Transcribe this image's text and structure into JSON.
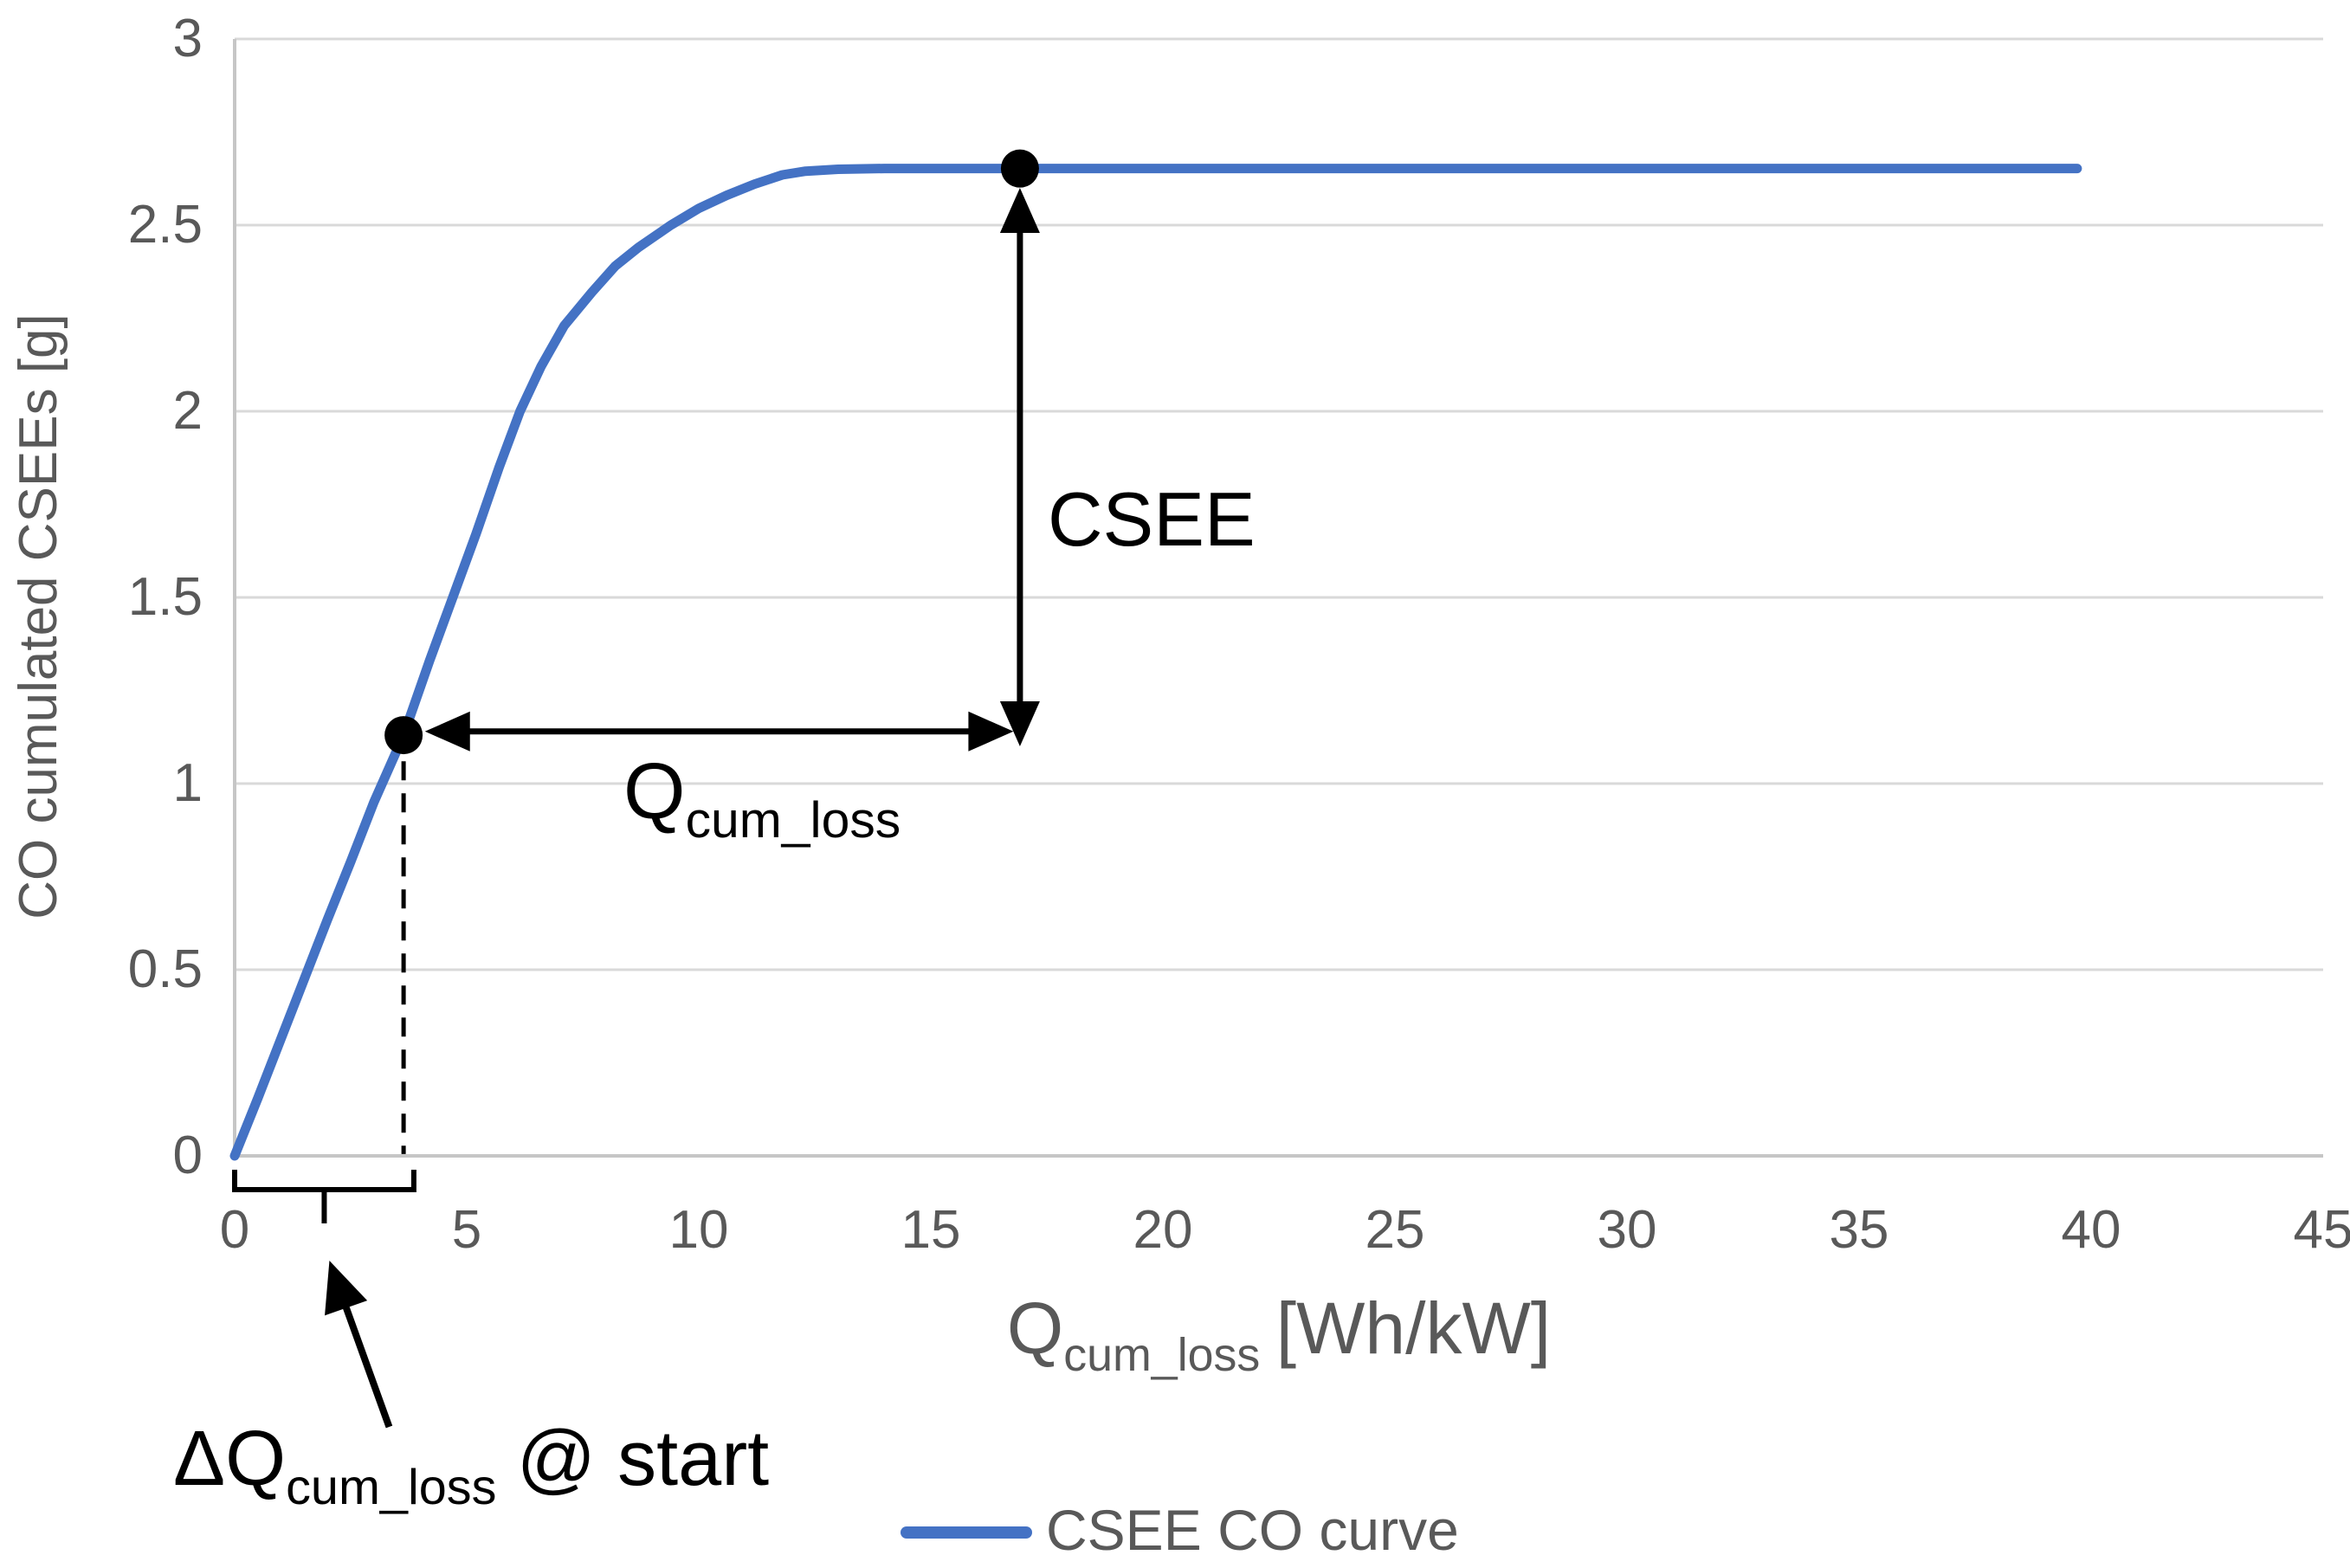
{
  "colors": {
    "curve_blue": "#4472C4",
    "gridline": "#d9d9d9",
    "axis_line": "#c6c6c6",
    "tick_text": "#595959",
    "annotation_black": "#000000",
    "background": "#ffffff"
  },
  "y_axis": {
    "title": "CO cumulated CSEEs [g]",
    "tick_labels": [
      "0",
      "0.5",
      "1",
      "1.5",
      "2",
      "2.5",
      "3"
    ]
  },
  "x_axis": {
    "title_main": "Q",
    "title_sub": "cum_loss",
    "title_unit": "[Wh/kW]",
    "tick_labels": [
      "0",
      "5",
      "10",
      "15",
      "20",
      "25",
      "30",
      "35",
      "40",
      "45"
    ]
  },
  "legend": {
    "label": "CSEE CO curve"
  },
  "annotations_text": {
    "csee": "CSEE",
    "q_main": "Q",
    "q_sub": "cum_loss",
    "delta_main": "ΔQ",
    "delta_sub": "cum_loss",
    "delta_suffix": "@ start"
  },
  "chart_data": {
    "type": "line",
    "title": "",
    "xlabel": "Q_cum_loss [Wh/kW]",
    "ylabel": "CO cumulated CSEEs [g]",
    "xlim": [
      0,
      45
    ],
    "ylim": [
      0,
      3
    ],
    "x_ticks": [
      0,
      5,
      10,
      15,
      20,
      25,
      30,
      35,
      40,
      45
    ],
    "y_ticks": [
      0,
      0.5,
      1,
      1.5,
      2,
      2.5,
      3
    ],
    "grid": "horizontal",
    "legend_position": "bottom-center",
    "series": [
      {
        "name": "CSEE CO curve",
        "color": "#4472C4",
        "points": [
          [
            0,
            0
          ],
          [
            0.5,
            0.155
          ],
          [
            1,
            0.315
          ],
          [
            1.5,
            0.475
          ],
          [
            2,
            0.635
          ],
          [
            2.5,
            0.79
          ],
          [
            3,
            0.95
          ],
          [
            3.64,
            1.13
          ],
          [
            4.2,
            1.33
          ],
          [
            4.7,
            1.5
          ],
          [
            5.2,
            1.67
          ],
          [
            5.7,
            1.85
          ],
          [
            6.15,
            2.0
          ],
          [
            6.6,
            2.12
          ],
          [
            7.1,
            2.23
          ],
          [
            7.7,
            2.32
          ],
          [
            8.2,
            2.39
          ],
          [
            8.7,
            2.44
          ],
          [
            9.4,
            2.5
          ],
          [
            10,
            2.545
          ],
          [
            10.6,
            2.58
          ],
          [
            11.2,
            2.61
          ],
          [
            11.8,
            2.635
          ],
          [
            12.3,
            2.645
          ],
          [
            13,
            2.65
          ],
          [
            14,
            2.652
          ],
          [
            17,
            2.652
          ],
          [
            20,
            2.652
          ],
          [
            25,
            2.652
          ],
          [
            30,
            2.652
          ],
          [
            35,
            2.652
          ],
          [
            39.7,
            2.652
          ]
        ]
      }
    ],
    "marked_points": [
      {
        "x": 3.64,
        "y": 1.13
      },
      {
        "x": 16.92,
        "y": 2.652
      }
    ],
    "annotations": [
      {
        "id": "csee-arrow",
        "type": "double_arrow_vertical",
        "x": 16.92,
        "y_from": 2.6,
        "y_to": 1.1,
        "label": "CSEE"
      },
      {
        "id": "qcl-arrow",
        "type": "double_arrow_horizontal",
        "y": 1.14,
        "x_from": 4.1,
        "x_to": 16.78,
        "label": "Q_cum_loss"
      },
      {
        "id": "drop-line",
        "type": "dashed_vertical",
        "x": 3.64,
        "y_from": 1.06,
        "y_to": 0.005
      },
      {
        "id": "start-brace",
        "type": "brace_below_axis",
        "x_from": 0,
        "x_to": 3.86,
        "label": "ΔQ_cum_loss @ start"
      }
    ]
  }
}
